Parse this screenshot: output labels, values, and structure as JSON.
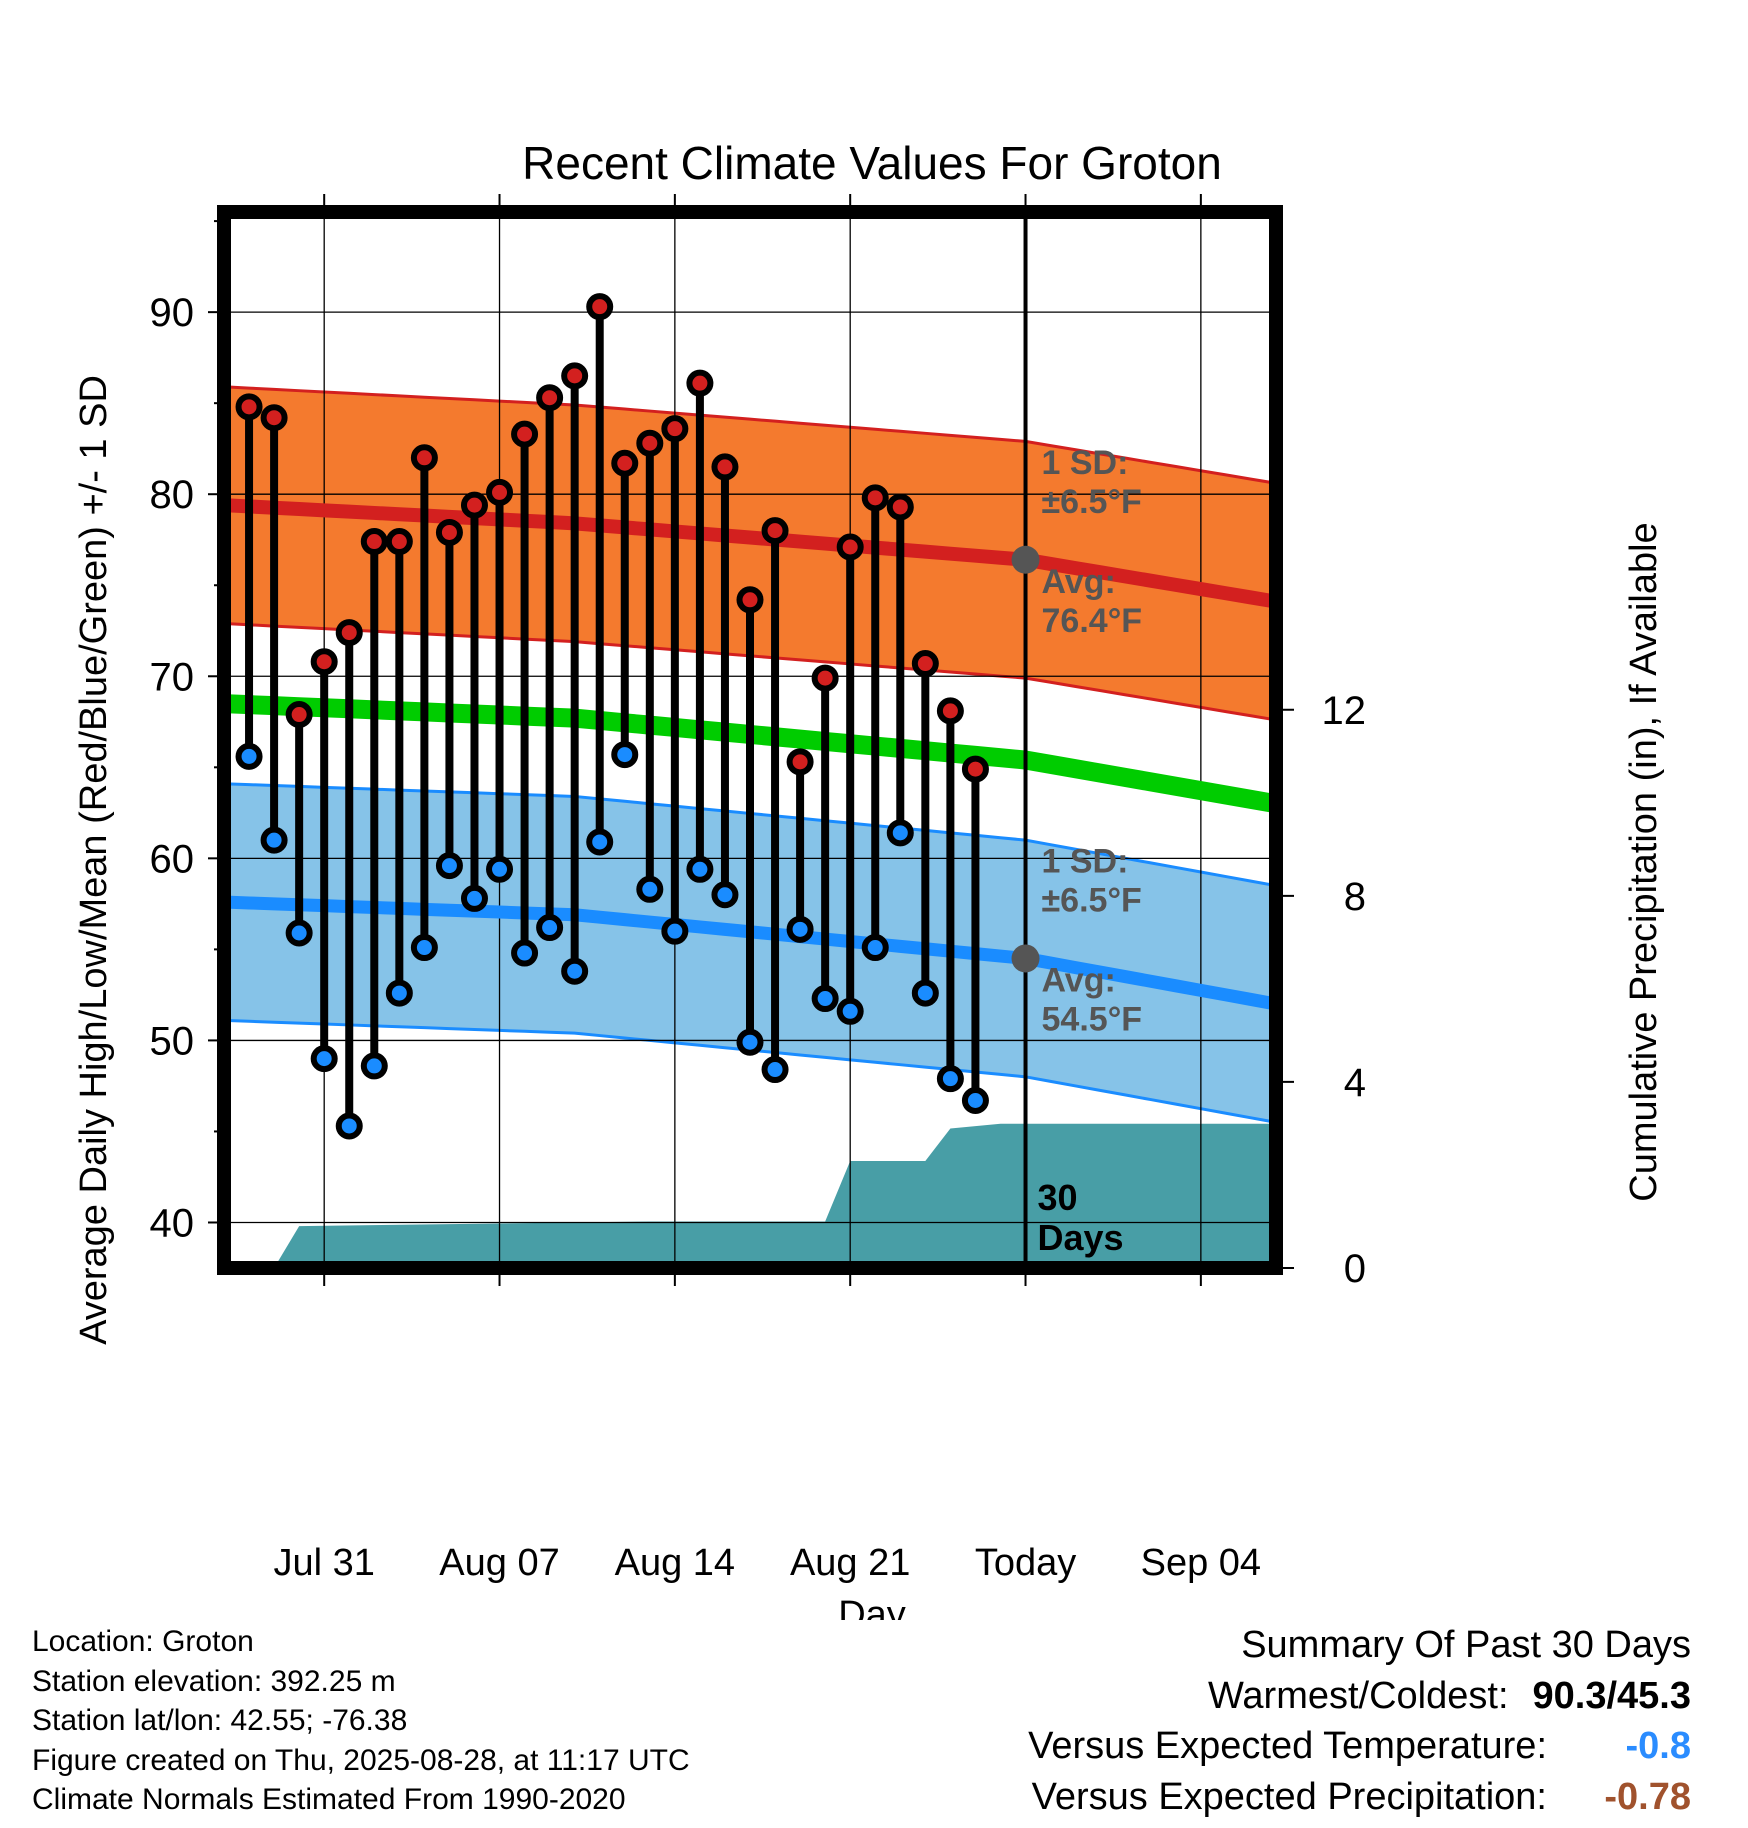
{
  "chart_data": {
    "type": "line",
    "title": "Recent Climate Values For Groton",
    "xlabel": "Day",
    "ylabel_left": "Average Daily High/Low/Mean (Red/Blue/Green) +/- 1 SD",
    "ylabel_right": "Cumulative Precipitation (in), If Available",
    "y_left_lim": [
      37.5,
      95.5
    ],
    "y_right_lim": [
      0,
      22.7
    ],
    "y_left_ticks": [
      40,
      50,
      60,
      70,
      80,
      90
    ],
    "y_right_ticks": [
      0,
      4,
      8,
      12
    ],
    "x_range": [
      "2025-07-27",
      "2025-09-07"
    ],
    "x_ticks": [
      {
        "date": "2025-07-31",
        "label": "Jul 31"
      },
      {
        "date": "2025-08-07",
        "label": "Aug 07"
      },
      {
        "date": "2025-08-14",
        "label": "Aug 14"
      },
      {
        "date": "2025-08-21",
        "label": "Aug 21"
      },
      {
        "date": "2025-08-28",
        "label": "Today"
      },
      {
        "date": "2025-09-04",
        "label": "Sep 04"
      }
    ],
    "grid": true,
    "today": "2025-08-28",
    "dates": [
      "2025-07-28",
      "2025-07-29",
      "2025-07-30",
      "2025-07-31",
      "2025-08-01",
      "2025-08-02",
      "2025-08-03",
      "2025-08-04",
      "2025-08-05",
      "2025-08-06",
      "2025-08-07",
      "2025-08-08",
      "2025-08-09",
      "2025-08-10",
      "2025-08-11",
      "2025-08-12",
      "2025-08-13",
      "2025-08-14",
      "2025-08-15",
      "2025-08-16",
      "2025-08-17",
      "2025-08-18",
      "2025-08-19",
      "2025-08-20",
      "2025-08-21",
      "2025-08-22",
      "2025-08-23",
      "2025-08-24",
      "2025-08-25",
      "2025-08-26",
      "2025-08-27"
    ],
    "highs": [
      84.8,
      84.2,
      67.9,
      70.8,
      72.4,
      77.4,
      77.4,
      82.0,
      77.9,
      79.4,
      80.1,
      83.3,
      85.3,
      86.5,
      90.3,
      81.7,
      82.8,
      83.6,
      86.1,
      81.5,
      74.2,
      78.0,
      65.3,
      69.9,
      77.1,
      79.8,
      79.3,
      70.7,
      68.1,
      64.9,
      null
    ],
    "lows": [
      65.6,
      61.0,
      55.9,
      49.0,
      45.3,
      48.6,
      52.6,
      55.1,
      59.6,
      57.8,
      59.4,
      54.8,
      56.2,
      53.8,
      60.9,
      65.7,
      58.3,
      56.0,
      59.4,
      58.0,
      49.9,
      48.4,
      56.1,
      52.3,
      51.6,
      55.1,
      61.4,
      52.6,
      47.9,
      46.7,
      null
    ],
    "normal_high": {
      "dates": [
        "2025-07-27",
        "2025-08-10",
        "2025-08-28",
        "2025-09-07"
      ],
      "avg": [
        79.4,
        78.4,
        76.4,
        74.1
      ],
      "sd": 6.5
    },
    "normal_low": {
      "dates": [
        "2025-07-27",
        "2025-08-10",
        "2025-08-28",
        "2025-09-07"
      ],
      "avg": [
        57.6,
        56.9,
        54.5,
        52.0
      ],
      "sd": 6.5
    },
    "normal_mean": {
      "dates": [
        "2025-07-27",
        "2025-08-10",
        "2025-08-28",
        "2025-09-07"
      ],
      "values": [
        68.5,
        67.7,
        65.4,
        63.0
      ]
    },
    "precip_cumulative": {
      "dates": [
        "2025-07-29",
        "2025-07-30",
        "2025-08-13",
        "2025-08-20",
        "2025-08-21",
        "2025-08-24",
        "2025-08-25",
        "2025-08-27",
        "2025-08-28",
        "2025-09-07"
      ],
      "values": [
        0.0,
        0.9,
        1.0,
        1.0,
        2.3,
        2.3,
        3.0,
        3.1,
        3.1,
        3.1
      ]
    },
    "annotations": {
      "high_sd": "1 SD:",
      "high_sd_value": "±6.5°F",
      "high_avg": "Avg:",
      "high_avg_value": "76.4°F",
      "low_sd": "1 SD:",
      "low_sd_value": "±6.5°F",
      "low_avg": "Avg:",
      "low_avg_value": "54.5°F",
      "period": "30",
      "period_unit": "Days"
    },
    "colors": {
      "high": "#d3201f",
      "low": "#1a8cff",
      "mean": "#00cc00",
      "high_band": "#f47a2e",
      "low_band": "#86c3e8",
      "precip": "#489ea6",
      "avg_marker": "#555555",
      "annotation": "#555555"
    }
  },
  "info": {
    "location": "Location: Groton",
    "elevation": "Station elevation: 392.25 m",
    "latlon": "Station lat/lon: 42.55; -76.38",
    "created": "Figure created on Thu, 2025-08-28, at 11:17 UTC",
    "normals": "Climate Normals Estimated From 1990-2020"
  },
  "summary": {
    "title": "Summary Of Past 30 Days",
    "warmest_label": "Warmest/Coldest:",
    "warmest_value": "90.3/45.3",
    "temp_label": "Versus Expected Temperature:",
    "temp_value": "-0.8",
    "temp_color": "#2a8cff",
    "precip_label": "Versus Expected Precipitation:",
    "precip_value": "-0.78",
    "precip_color": "#a0522d"
  }
}
